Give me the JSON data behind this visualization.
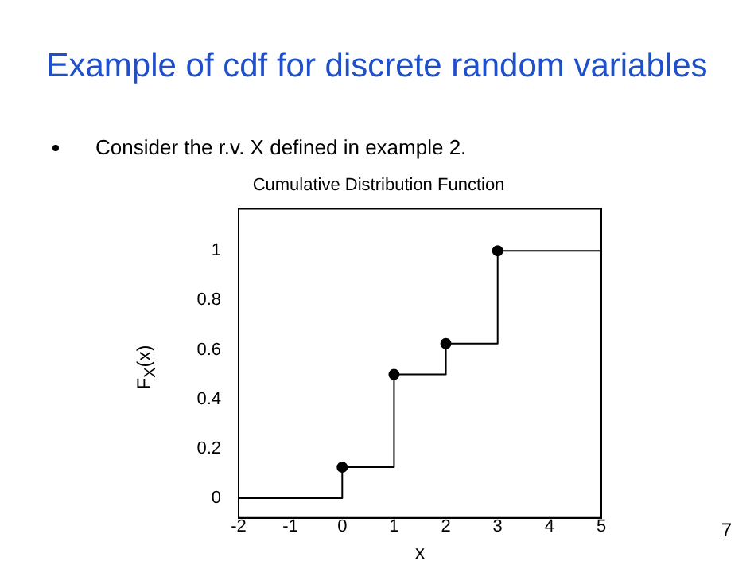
{
  "chart_data": {
    "type": "step",
    "title": "Example of cdf for discrete random variables",
    "subtitle": "Cumulative Distribution Function",
    "xlabel": "x",
    "ylabel": "F$_{X}$(x)",
    "annotations": [
      "Consider the r.v. X defined in example 2.",
      "7"
    ],
    "series": [
      {
        "color": "#000000",
        "x": [
          -2,
          0,
          1,
          2,
          3,
          5
        ],
        "values": [
          0,
          0.125,
          0.5,
          0.625,
          1,
          1
        ],
        "marker": "none"
      },
      {
        "type": "scatter",
        "color": "#000000",
        "x": [
          0,
          1,
          2,
          3
        ],
        "values": [
          0.125,
          0.5,
          0.625,
          1
        ],
        "marker": "circle"
      }
    ],
    "xlim": [
      -2,
      5
    ],
    "xticks": [
      -2,
      -1,
      0,
      1,
      2,
      3,
      4,
      5
    ],
    "ylim": [
      -0.08,
      1.17
    ],
    "yticks": [
      0,
      0.2,
      0.4,
      0.6,
      0.8,
      1
    ],
    "grid": false
  }
}
